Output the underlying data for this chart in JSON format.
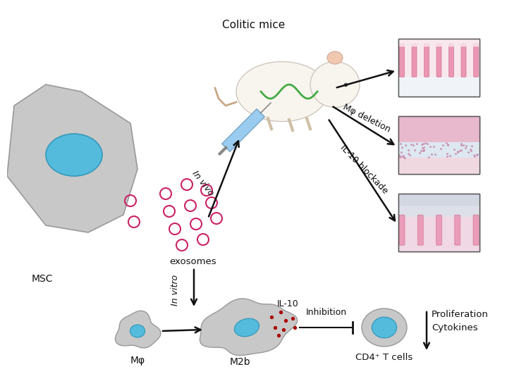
{
  "bg_color": "#ffffff",
  "cell_color": "#c8c8c8",
  "cell_edge": "#999999",
  "nucleus_color": "#55bbdd",
  "nucleus_edge": "#3399bb",
  "exosome_color": "#cc2266",
  "il10_dot_color": "#aa0000",
  "arrow_color": "#111111",
  "text_color": "#111111",
  "labels": {
    "msc": "MSC",
    "exosomes": "exosomes",
    "colitic_mice": "Colitic mice",
    "in_vivo": "In vivo",
    "in_vitro": "In vitro",
    "mphi": "Mφ",
    "m2b": "M2b",
    "cd4": "CD4⁺ T cells",
    "il10": "IL-10",
    "inhibition": "Inhibition",
    "mphi_del": "Mφ deletion",
    "il10_block": "IL-10 blockade",
    "proliferation": "Proliferation",
    "cytokines": "Cytokines"
  }
}
